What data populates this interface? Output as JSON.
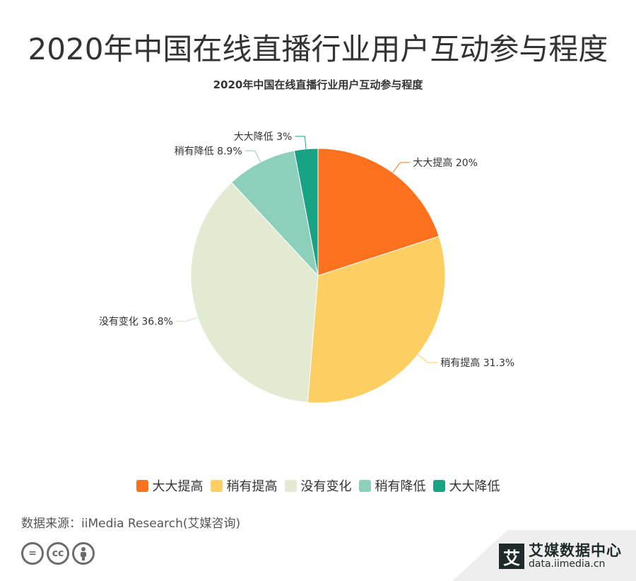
{
  "header": {
    "title": "2020年中国在线直播行业用户互动参与程度",
    "chart_title": "2020年中国在线直播行业用户互动参与程度"
  },
  "chart_data": {
    "type": "pie",
    "title": "2020年中国在线直播行业用户互动参与程度",
    "slices": [
      {
        "label": "大大提高",
        "value": 20,
        "value_label": "20%",
        "color": "#fc711d"
      },
      {
        "label": "稍有提高",
        "value": 31.3,
        "value_label": "31.3%",
        "color": "#fdce62"
      },
      {
        "label": "没有变化",
        "value": 36.8,
        "value_label": "36.8%",
        "color": "#e2ead1"
      },
      {
        "label": "稍有降低",
        "value": 8.9,
        "value_label": "8.9%",
        "color": "#8ccfba"
      },
      {
        "label": "大大降低",
        "value": 3,
        "value_label": "3%",
        "color": "#17a384"
      }
    ],
    "legend_position": "bottom"
  },
  "footer": {
    "source": "数据来源：iiMedia Research(艾媒咨询)",
    "license_icons": [
      "equal-icon",
      "cc-icon",
      "person-icon"
    ],
    "brand_logo_char": "艾",
    "brand_name": "艾媒数据中心",
    "brand_url": "data.iimedia.cn"
  }
}
